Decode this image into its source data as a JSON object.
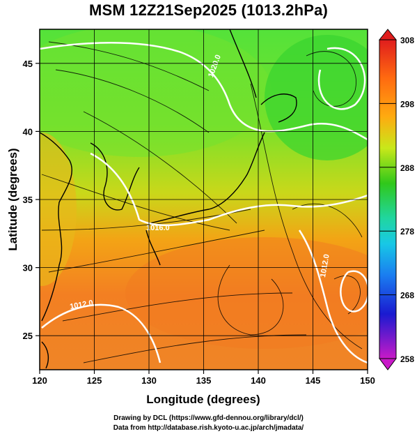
{
  "title": "MSM 12Z21Sep2025 (1013.2hPa)",
  "x_axis": {
    "label": "Longitude (degrees)",
    "ticks": [
      120,
      125,
      130,
      135,
      140,
      145,
      150
    ],
    "range": [
      120,
      150
    ]
  },
  "y_axis": {
    "label": "Latitude  (degrees)",
    "ticks": [
      25,
      30,
      35,
      40,
      45
    ],
    "range": [
      22.5,
      47.5
    ]
  },
  "colorbar": {
    "ticks": [
      258,
      268,
      278,
      288,
      298,
      308
    ],
    "range": [
      258,
      308
    ]
  },
  "isobars": [
    {
      "label": "1020.0"
    },
    {
      "label": "1016.0"
    },
    {
      "label": "1012.0"
    },
    {
      "label": "1012.0"
    }
  ],
  "footer": {
    "line1": "Drawing by DCL (https://www.gfd-dennou.org/library/dcl/)",
    "line2": "Data from http://database.rish.kyoto-u.ac.jp/arch/jmadata/"
  },
  "colors": {
    "cold_top": "#6a0dad",
    "cool": "#1565ff",
    "mid": "#22d3c0",
    "green": "#22c11a",
    "warm": "#ff8c10",
    "hot": "#e02020",
    "isobar": "#ffffff",
    "streamline": "#000000"
  }
}
